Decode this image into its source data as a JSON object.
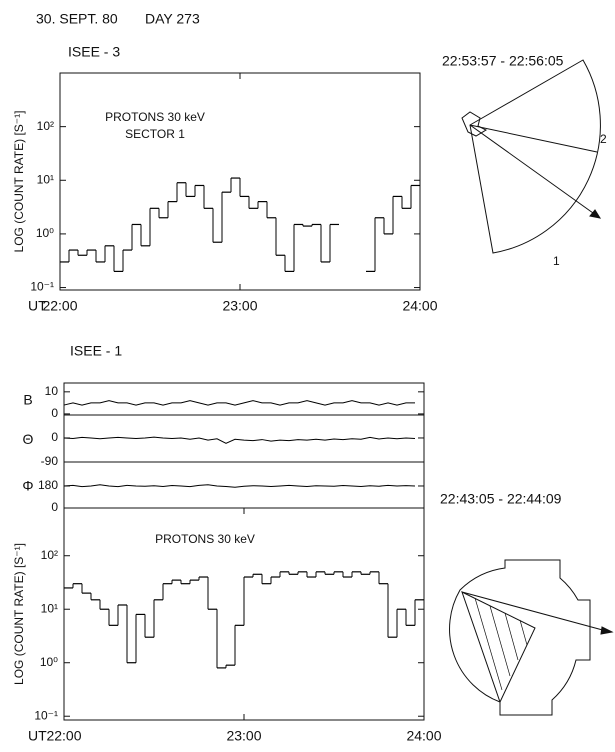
{
  "header": {
    "date": "30. SEPT. 80",
    "day": "DAY 273"
  },
  "sector_plots": [
    {
      "time_range": "22:53:57 - 22:56:05",
      "labels": [
        "2",
        "1"
      ]
    },
    {
      "time_range": "22:43:05 - 22:44:09"
    }
  ],
  "chart_data": [
    {
      "type": "line",
      "step": true,
      "title": "ISEE - 3",
      "annotations": [
        "PROTONS 30 keV",
        "SECTOR 1"
      ],
      "y_label": "LOG (COUNT RATE) [S⁻¹]",
      "x_label": "UT",
      "log_y": true,
      "xlim": [
        22,
        24
      ],
      "xticks": [
        {
          "value": 22,
          "label": "22:00"
        },
        {
          "value": 23,
          "label": "23:00"
        },
        {
          "value": 24,
          "label": "24:00"
        }
      ],
      "ylim": [
        0.09,
        1000
      ],
      "yticks": [
        {
          "value": 0.1,
          "label": "10⁻¹"
        },
        {
          "value": 1,
          "label": "10⁰"
        },
        {
          "value": 10,
          "label": "10¹"
        },
        {
          "value": 100,
          "label": "10²"
        }
      ],
      "x": [
        22,
        22.05,
        22.1,
        22.15,
        22.2,
        22.25,
        22.3,
        22.35,
        22.4,
        22.45,
        22.5,
        22.55,
        22.6,
        22.65,
        22.7,
        22.75,
        22.8,
        22.85,
        22.9,
        22.95,
        23,
        23.05,
        23.1,
        23.15,
        23.2,
        23.25,
        23.3,
        23.35,
        23.4,
        23.45,
        23.5,
        23.55,
        23.6,
        23.65,
        23.7,
        23.75,
        23.8,
        23.85,
        23.9,
        23.95
      ],
      "series": [
        {
          "color": "#000000",
          "values": [
            0.3,
            0.5,
            0.4,
            0.5,
            0.3,
            0.6,
            0.2,
            0.5,
            1.5,
            0.6,
            3,
            2,
            4,
            9,
            5,
            8,
            3,
            0.7,
            6,
            11,
            5,
            3,
            4,
            2,
            0.4,
            0.2,
            1.5,
            1.4,
            1.5,
            0.3,
            1.5,
            null,
            null,
            null,
            0.2,
            2,
            1,
            5,
            3,
            8
          ]
        }
      ]
    },
    {
      "type": "line",
      "title": "ISEE - 1",
      "y_label": "B",
      "xlim": [
        22,
        24
      ],
      "ylim": [
        -0.5,
        14
      ],
      "yticks": [
        0,
        10
      ],
      "x": [
        22,
        22.05,
        22.1,
        22.15,
        22.2,
        22.25,
        22.3,
        22.35,
        22.4,
        22.45,
        22.5,
        22.55,
        22.6,
        22.65,
        22.7,
        22.75,
        22.8,
        22.85,
        22.9,
        22.95,
        23,
        23.05,
        23.1,
        23.15,
        23.2,
        23.25,
        23.3,
        23.35,
        23.4,
        23.45,
        23.5,
        23.55,
        23.6,
        23.65,
        23.7,
        23.75,
        23.8,
        23.85,
        23.9,
        23.95
      ],
      "series": [
        {
          "color": "#000000",
          "values": [
            4,
            5,
            4,
            5,
            5,
            6,
            5,
            5,
            4,
            5,
            5,
            4,
            5,
            5,
            6,
            5,
            4,
            5,
            5,
            4,
            5,
            6,
            5,
            5,
            4,
            5,
            5,
            6,
            5,
            4,
            5,
            5,
            6,
            5,
            5,
            4,
            5,
            4,
            5,
            5
          ]
        }
      ]
    },
    {
      "type": "line",
      "y_label": "Θ",
      "xlim": [
        22,
        24
      ],
      "ylim": [
        -90,
        86
      ],
      "yticks": [
        -90,
        0
      ],
      "x": [
        22,
        22.05,
        22.1,
        22.15,
        22.2,
        22.25,
        22.3,
        22.35,
        22.4,
        22.45,
        22.5,
        22.55,
        22.6,
        22.65,
        22.7,
        22.75,
        22.8,
        22.85,
        22.9,
        22.95,
        23,
        23.05,
        23.1,
        23.15,
        23.2,
        23.25,
        23.3,
        23.35,
        23.4,
        23.45,
        23.5,
        23.55,
        23.6,
        23.65,
        23.7,
        23.75,
        23.8,
        23.85,
        23.9,
        23.95
      ],
      "series": [
        {
          "color": "#000000",
          "values": [
            0,
            -2,
            2,
            0,
            -3,
            0,
            2,
            0,
            -2,
            0,
            3,
            0,
            -2,
            0,
            -5,
            0,
            -8,
            -3,
            -20,
            -5,
            -8,
            -10,
            -6,
            -12,
            -8,
            -10,
            -6,
            -8,
            -5,
            -8,
            -4,
            -6,
            -3,
            -5,
            2,
            -4,
            0,
            -3,
            0,
            -2
          ]
        }
      ]
    },
    {
      "type": "line",
      "y_label": "Φ",
      "xlim": [
        22,
        24
      ],
      "ylim": [
        0,
        376
      ],
      "yticks": [
        0,
        180
      ],
      "x": [
        22,
        22.05,
        22.1,
        22.15,
        22.2,
        22.25,
        22.3,
        22.35,
        22.4,
        22.45,
        22.5,
        22.55,
        22.6,
        22.65,
        22.7,
        22.75,
        22.8,
        22.85,
        22.9,
        22.95,
        23,
        23.05,
        23.1,
        23.15,
        23.2,
        23.25,
        23.3,
        23.35,
        23.4,
        23.45,
        23.5,
        23.55,
        23.6,
        23.65,
        23.7,
        23.75,
        23.8,
        23.85,
        23.9,
        23.95
      ],
      "series": [
        {
          "color": "#000000",
          "values": [
            180,
            185,
            175,
            180,
            190,
            180,
            175,
            185,
            180,
            178,
            182,
            176,
            184,
            180,
            175,
            185,
            190,
            180,
            176,
            170,
            178,
            182,
            180,
            176,
            180,
            185,
            180,
            176,
            182,
            180,
            178,
            184,
            180,
            176,
            182,
            178,
            185,
            180,
            183,
            180
          ]
        }
      ]
    },
    {
      "type": "line",
      "step": true,
      "annotations": [
        "PROTONS  30 keV"
      ],
      "y_label": "LOG (COUNT RATE) [S⁻¹]",
      "x_label": "UT",
      "log_y": true,
      "xlim": [
        22,
        24
      ],
      "xticks": [
        {
          "value": 22,
          "label": "22:00"
        },
        {
          "value": 23,
          "label": "23:00"
        },
        {
          "value": 24,
          "label": "24:00"
        }
      ],
      "ylim": [
        0.085,
        780
      ],
      "yticks": [
        {
          "value": 0.1,
          "label": "10⁻¹"
        },
        {
          "value": 1,
          "label": "10⁰"
        },
        {
          "value": 10,
          "label": "10¹"
        },
        {
          "value": 100,
          "label": "10²"
        }
      ],
      "x": [
        22,
        22.05,
        22.1,
        22.15,
        22.2,
        22.25,
        22.3,
        22.35,
        22.4,
        22.45,
        22.5,
        22.55,
        22.6,
        22.65,
        22.7,
        22.75,
        22.8,
        22.85,
        22.9,
        22.95,
        23,
        23.05,
        23.1,
        23.15,
        23.2,
        23.25,
        23.3,
        23.35,
        23.4,
        23.45,
        23.5,
        23.55,
        23.6,
        23.65,
        23.7,
        23.75,
        23.8,
        23.85,
        23.9,
        23.95
      ],
      "series": [
        {
          "color": "#000000",
          "values": [
            25,
            30,
            20,
            15,
            10,
            5,
            12,
            1,
            8,
            3,
            15,
            30,
            35,
            30,
            35,
            40,
            10,
            0.8,
            0.9,
            5,
            40,
            45,
            30,
            40,
            50,
            45,
            50,
            40,
            50,
            45,
            50,
            40,
            50,
            45,
            50,
            30,
            3,
            10,
            5,
            15
          ]
        }
      ]
    }
  ]
}
